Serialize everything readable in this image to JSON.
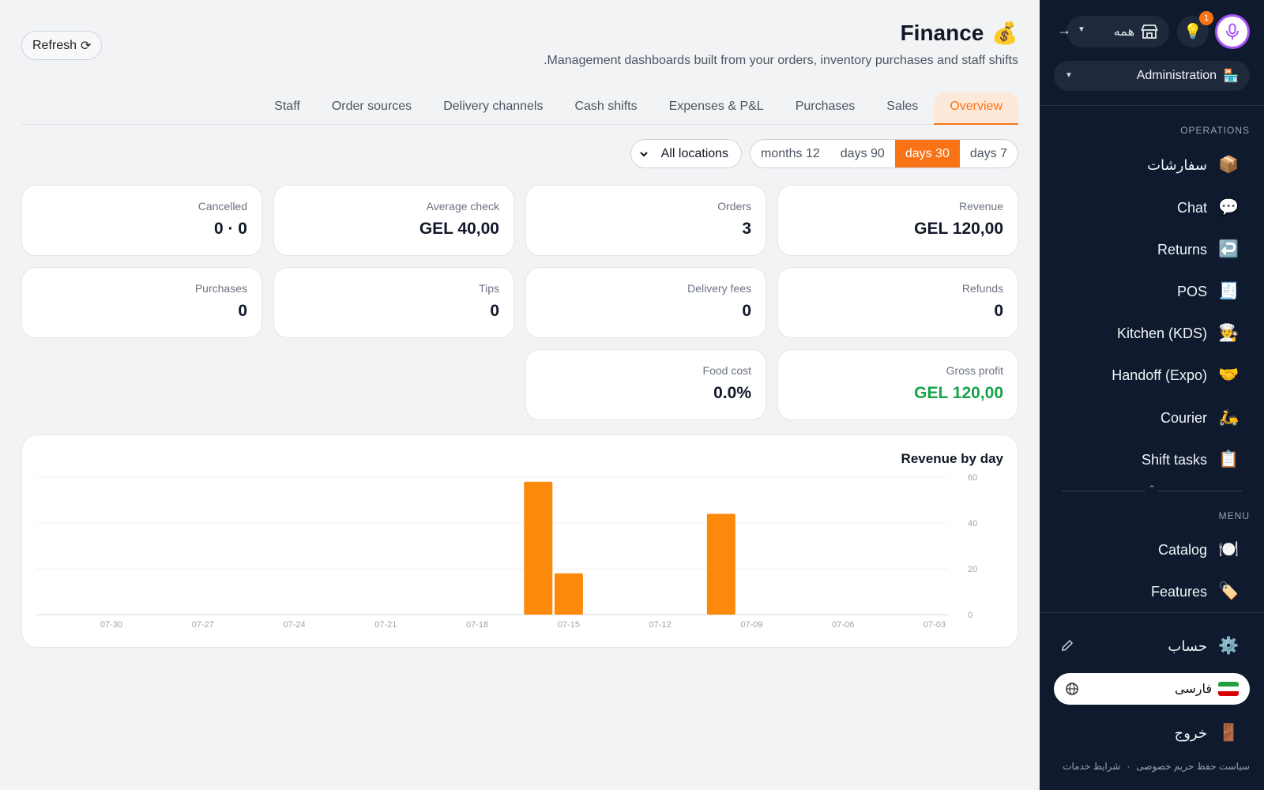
{
  "header": {
    "title": "Finance",
    "title_emoji": "💰",
    "subtitle": ".Management dashboards built from your orders, inventory purchases and staff shifts",
    "refresh_label": "Refresh",
    "refresh_icon": "⟳"
  },
  "tabs": [
    {
      "label": "Overview",
      "active": true
    },
    {
      "label": "Sales",
      "active": false
    },
    {
      "label": "Purchases",
      "active": false
    },
    {
      "label": "Expenses & P&L",
      "active": false
    },
    {
      "label": "Cash shifts",
      "active": false
    },
    {
      "label": "Delivery channels",
      "active": false
    },
    {
      "label": "Order sources",
      "active": false
    },
    {
      "label": "Staff",
      "active": false
    }
  ],
  "filters": {
    "location": "All locations",
    "periods": [
      {
        "label": "days 7",
        "active": false
      },
      {
        "label": "days 30",
        "active": true
      },
      {
        "label": "days 90",
        "active": false
      },
      {
        "label": "months 12",
        "active": false
      }
    ]
  },
  "kpis": [
    {
      "label": "Revenue",
      "value": "GEL 120,00"
    },
    {
      "label": "Orders",
      "value": "3"
    },
    {
      "label": "Average check",
      "value": "GEL 40,00"
    },
    {
      "label": "Cancelled",
      "value": "0 · 0"
    },
    {
      "label": "Refunds",
      "value": "0"
    },
    {
      "label": "Delivery fees",
      "value": "0"
    },
    {
      "label": "Tips",
      "value": "0"
    },
    {
      "label": "Purchases",
      "value": "0"
    },
    {
      "label": "Gross profit",
      "value": "GEL 120,00",
      "color": "#16a34a"
    },
    {
      "label": "Food cost",
      "value": "0.0%"
    }
  ],
  "chart_data": {
    "type": "bar",
    "title": "Revenue by day",
    "x_tick_labels": [
      "07-30",
      "07-27",
      "07-24",
      "07-21",
      "07-18",
      "07-15",
      "07-12",
      "07-09",
      "07-06",
      "07-03"
    ],
    "y_ticks": [
      0,
      20,
      40,
      60
    ],
    "ylim": [
      0,
      60
    ],
    "bars": [
      {
        "date": "07-16",
        "value": 58
      },
      {
        "date": "07-15",
        "value": 18
      },
      {
        "date": "07-10",
        "value": 44
      }
    ],
    "color": "#fb8a0c",
    "grid": true,
    "x_reversed": true
  },
  "sidebar": {
    "top": {
      "store_label": "همه",
      "notification_count": "1",
      "arrow": "→"
    },
    "role": "Administration",
    "role_icon": "🏪",
    "operations_label": "OPERATIONS",
    "operations": [
      {
        "label": "سفارشات",
        "icon": "📦"
      },
      {
        "label": "Chat",
        "icon": "💬"
      },
      {
        "label": "Returns",
        "icon": "↩️"
      },
      {
        "label": "POS",
        "icon": "🧾"
      },
      {
        "label": "Kitchen (KDS)",
        "icon": "🧑‍🍳"
      },
      {
        "label": "Handoff (Expo)",
        "icon": "🤝"
      },
      {
        "label": "Courier",
        "icon": "🛵"
      },
      {
        "label": "Shift tasks",
        "icon": "📋"
      }
    ],
    "menu_label": "MENU",
    "menu": [
      {
        "label": "Catalog",
        "icon": "🍽️"
      },
      {
        "label": "Features",
        "icon": "🏷️"
      }
    ],
    "account": {
      "label": "حساب",
      "icon": "⚙️"
    },
    "language": "فارسی",
    "logout": {
      "label": "خروج",
      "icon": "🚪"
    },
    "footer": {
      "privacy": "سیاست حفظ حریم خصوصی",
      "separator": "·",
      "terms": "شرایط خدمات"
    }
  }
}
